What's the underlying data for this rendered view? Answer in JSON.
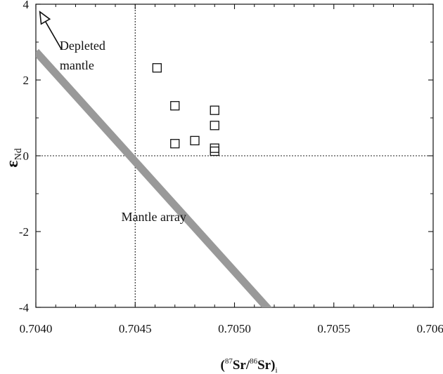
{
  "chart_data": {
    "type": "scatter",
    "xlim": [
      0.704,
      0.706
    ],
    "ylim": [
      -4,
      4
    ],
    "x_ticks": [
      "0.7040",
      "0.7045",
      "0.7050",
      "0.7055",
      "0.7060"
    ],
    "x_tick_values": [
      0.704,
      0.7045,
      0.705,
      0.7055,
      0.706
    ],
    "y_ticks": [
      "4",
      "2",
      "0",
      "-2",
      "-4"
    ],
    "y_tick_values": [
      4,
      2,
      0,
      -2,
      -4
    ],
    "xlabel": {
      "open": "(",
      "sup1": "87",
      "mid": "Sr/",
      "sup2": "86",
      "main": "Sr)",
      "sub": "i"
    },
    "ylabel": {
      "symbol": "ε",
      "sub": "Nd"
    },
    "series": [
      {
        "marker": "open-square",
        "points": [
          {
            "x": 0.70461,
            "y": 2.32
          },
          {
            "x": 0.7047,
            "y": 1.32
          },
          {
            "x": 0.7049,
            "y": 1.2
          },
          {
            "x": 0.7049,
            "y": 0.8
          },
          {
            "x": 0.7048,
            "y": 0.4
          },
          {
            "x": 0.7047,
            "y": 0.32
          },
          {
            "x": 0.7049,
            "y": 0.2
          },
          {
            "x": 0.7049,
            "y": 0.12
          }
        ]
      }
    ],
    "reference_lines": [
      {
        "orientation": "vertical",
        "value": 0.7045,
        "style": "dotted"
      },
      {
        "orientation": "horizontal",
        "value": 0,
        "style": "dotted"
      }
    ],
    "mantle_array_line": {
      "x1": 0.704,
      "y1": 2.75,
      "x2": 0.70518,
      "y2": -4.1,
      "color": "#999999"
    },
    "arrow": {
      "from_x": 0.70413,
      "from_y": 2.8,
      "to_x": 0.70402,
      "to_y": 3.8
    },
    "annotations": [
      {
        "text": "Depleted",
        "x": 0.70412,
        "y": 2.8
      },
      {
        "text": "mantle",
        "x": 0.70412,
        "y": 2.28
      },
      {
        "text": "Mantle array",
        "x": 0.70443,
        "y": -1.72
      }
    ],
    "grid": false,
    "legend": "none"
  }
}
